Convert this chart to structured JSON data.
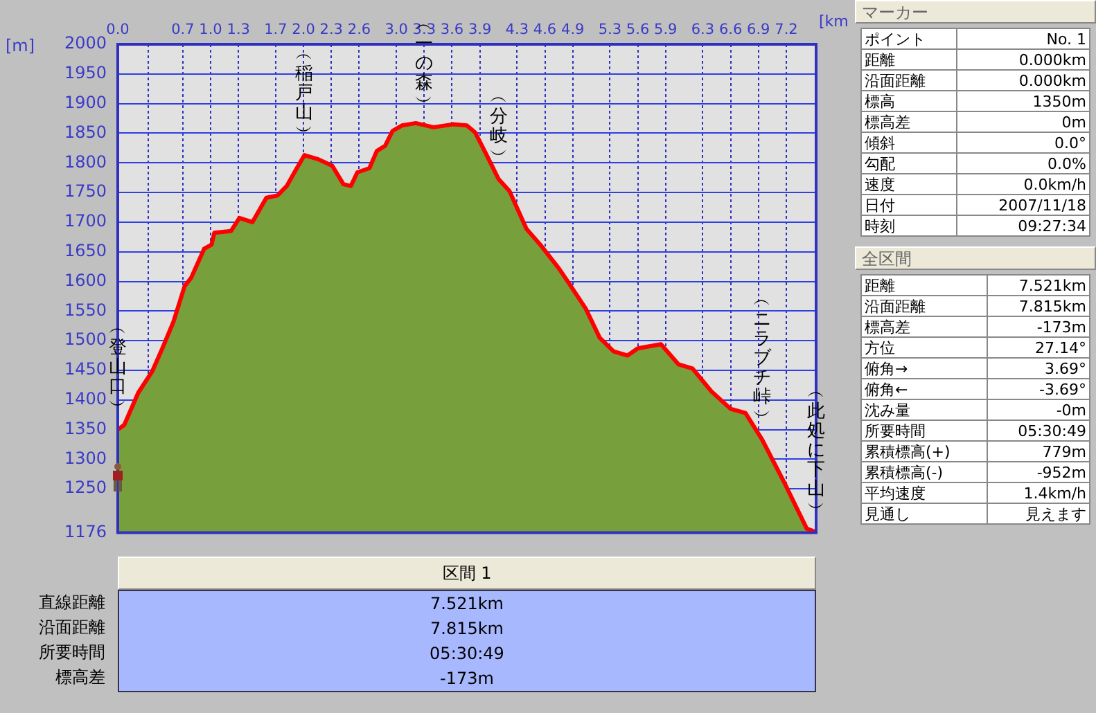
{
  "chart_data": [
    {
      "type": "area",
      "xlabel": "[km",
      "ylabel": "[m]",
      "xlim": [
        0,
        7.521
      ],
      "ylim": [
        1176,
        2000
      ],
      "xticks": [
        {
          "value": 0,
          "label": "0.0"
        },
        {
          "value": 0.33,
          "label": null
        },
        {
          "value": 0.7,
          "label": "0.7"
        },
        {
          "value": 1.0,
          "label": "1.0"
        },
        {
          "value": 1.3,
          "label": "1.3"
        },
        {
          "value": 1.7,
          "label": "1.7"
        },
        {
          "value": 2.0,
          "label": "2.0"
        },
        {
          "value": 2.3,
          "label": "2.3"
        },
        {
          "value": 2.6,
          "label": "2.6"
        },
        {
          "value": 3.0,
          "label": "3.0"
        },
        {
          "value": 3.3,
          "label": "3.3"
        },
        {
          "value": 3.6,
          "label": "3.6"
        },
        {
          "value": 3.9,
          "label": "3.9"
        },
        {
          "value": 4.3,
          "label": "4.3"
        },
        {
          "value": 4.6,
          "label": "4.6"
        },
        {
          "value": 4.9,
          "label": "4.9"
        },
        {
          "value": 5.3,
          "label": "5.3"
        },
        {
          "value": 5.6,
          "label": "5.6"
        },
        {
          "value": 5.9,
          "label": "5.9"
        },
        {
          "value": 6.3,
          "label": "6.3"
        },
        {
          "value": 6.6,
          "label": "6.6"
        },
        {
          "value": 6.9,
          "label": "6.9"
        },
        {
          "value": 7.2,
          "label": "7.2"
        }
      ],
      "yticks": [
        1176,
        1250,
        1300,
        1350,
        1400,
        1450,
        1500,
        1550,
        1600,
        1650,
        1700,
        1750,
        1800,
        1850,
        1900,
        1950,
        2000
      ],
      "grid": true,
      "legend": false,
      "marker": "none",
      "x": [
        0,
        0.07,
        0.22,
        0.37,
        0.48,
        0.6,
        0.72,
        0.79,
        0.93,
        1.01,
        1.04,
        1.22,
        1.31,
        1.45,
        1.6,
        1.72,
        1.82,
        1.91,
        2.01,
        2.16,
        2.31,
        2.43,
        2.51,
        2.58,
        2.71,
        2.79,
        2.88,
        2.96,
        3.06,
        3.21,
        3.4,
        3.61,
        3.76,
        3.85,
        3.96,
        4.1,
        4.22,
        4.4,
        4.55,
        4.75,
        4.85,
        5.04,
        5.19,
        5.34,
        5.49,
        5.6,
        5.85,
        6.04,
        6.19,
        6.39,
        6.6,
        6.76,
        6.94,
        7.19,
        7.42,
        7.521
      ],
      "series": [
        {
          "type": "area",
          "color": "#77a03c",
          "values": [
            1350,
            1358,
            1412,
            1448,
            1487,
            1532,
            1592,
            1606,
            1655,
            1662,
            1682,
            1685,
            1707,
            1700,
            1741,
            1745,
            1761,
            1786,
            1813,
            1806,
            1795,
            1764,
            1761,
            1784,
            1791,
            1820,
            1829,
            1854,
            1863,
            1867,
            1860,
            1865,
            1863,
            1851,
            1817,
            1773,
            1752,
            1689,
            1662,
            1622,
            1599,
            1554,
            1505,
            1482,
            1475,
            1487,
            1494,
            1460,
            1453,
            1415,
            1385,
            1378,
            1333,
            1257,
            1183,
            1177
          ]
        }
      ],
      "annotations": [
        {
          "text": "︵登山口︶",
          "x": 0,
          "y": 1350
        },
        {
          "text": "︵稲戸山︶",
          "x": 2.01,
          "y": 1813
        },
        {
          "text": "︵一の森︶",
          "x": 3.3,
          "y": 1863
        },
        {
          "text": "︵分岐︶",
          "x": 4.1,
          "y": 1773
        },
        {
          "text": "︵ニラブチ峠︶",
          "x": 6.94,
          "y": 1333
        },
        {
          "text": "︵此処に下山︶",
          "x": 7.521,
          "y": 1177
        }
      ]
    },
    {
      "type": "other",
      "title": "マーカー",
      "categories": [
        "ポイント",
        "距離",
        "沿面距離",
        "標高",
        "標高差",
        "傾斜",
        "勾配",
        "速度",
        "日付",
        "時刻"
      ],
      "value_labels": [
        "No. 1",
        "0.000km",
        "0.000km",
        "1350m",
        "0m",
        "0.0°",
        "0.0%",
        "0.0km/h",
        "2007/11/18",
        "09:27:34"
      ]
    },
    {
      "type": "other",
      "title": "全区間",
      "categories": [
        "距離",
        "沿面距離",
        "標高差",
        "方位",
        "俯角→",
        "俯角←",
        "沈み量",
        "所要時間",
        "累積標高(+)",
        "累積標高(-)",
        "平均速度",
        "見通し"
      ],
      "value_labels": [
        "7.521km",
        "7.815km",
        "-173m",
        "27.14°",
        "3.69°",
        "-3.69°",
        "-0m",
        "05:30:49",
        "779m",
        "-952m",
        "1.4km/h",
        "見えます"
      ]
    },
    {
      "type": "other",
      "title": "区間 1",
      "categories": [
        "直線距離",
        "沿面距離",
        "所要時間",
        "標高差"
      ],
      "value_labels": [
        "7.521km",
        "7.815km",
        "05:30:49",
        "-173m"
      ]
    }
  ]
}
